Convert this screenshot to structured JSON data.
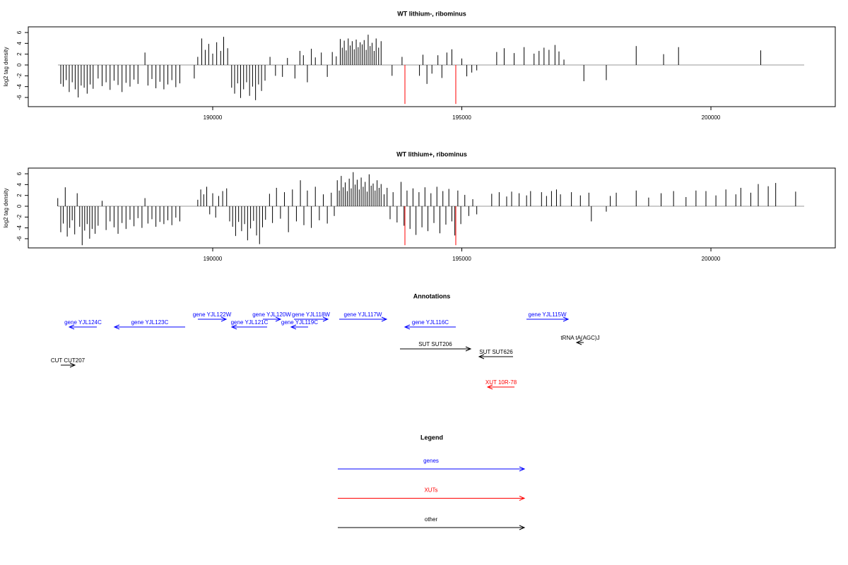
{
  "chart_data": [
    {
      "type": "bar",
      "title": "WT lithium-, ribominus",
      "y_label": "log2 tag density",
      "xlim": [
        186298,
        202496
      ],
      "ylim": [
        -7.7,
        7.05
      ],
      "xticks": [
        190000,
        195000,
        200000
      ],
      "yticks": [
        6,
        4,
        2,
        0,
        -2,
        -4,
        -6
      ],
      "color": "#000000",
      "x": [
        186950,
        187000,
        187060,
        187120,
        187180,
        187240,
        187300,
        187360,
        187420,
        187480,
        187540,
        187600,
        187700,
        187780,
        187860,
        187940,
        188020,
        188100,
        188180,
        188260,
        188340,
        188420,
        188500,
        188640,
        188700,
        188780,
        188860,
        188940,
        189020,
        189100,
        189180,
        189260,
        189340,
        189630,
        189700,
        189780,
        189850,
        189920,
        190000,
        190080,
        190160,
        190220,
        190300,
        190380,
        190440,
        190500,
        190560,
        190620,
        190680,
        190740,
        190800,
        190860,
        190920,
        190980,
        191050,
        191150,
        191260,
        191400,
        191500,
        191650,
        191750,
        191820,
        191900,
        191980,
        192060,
        192180,
        192300,
        192400,
        192480,
        192560,
        192600,
        192640,
        192680,
        192720,
        192760,
        192800,
        192840,
        192880,
        192920,
        192960,
        193000,
        193040,
        193080,
        193120,
        193160,
        193200,
        193240,
        193280,
        193330,
        193380,
        193600,
        193800,
        194150,
        194220,
        194300,
        194400,
        194520,
        194600,
        194700,
        194800,
        195000,
        195100,
        195200,
        195300,
        195700,
        195850,
        196050,
        196250,
        196450,
        196550,
        196650,
        196750,
        196870,
        196950,
        197050,
        197450,
        197900,
        198500,
        199050,
        199350,
        201000
      ],
      "values": [
        -3.5,
        -4,
        -2.8,
        -5,
        -3.2,
        -4.5,
        -6,
        -3.8,
        -4.2,
        -5.3,
        -3.6,
        -4.4,
        -2.5,
        -3.9,
        -3.2,
        -4.6,
        -2.9,
        -3.7,
        -5,
        -3.3,
        -4,
        -2.7,
        -3.5,
        2.3,
        -3.8,
        -2.6,
        -4.3,
        -3.1,
        -4.5,
        -3.6,
        -2.8,
        -4.1,
        -3.4,
        -2.5,
        1.5,
        4.9,
        2.8,
        3.9,
        2.1,
        4.2,
        2.6,
        5.2,
        3.1,
        -4.2,
        -5.3,
        -3.4,
        -6.1,
        -4.5,
        -3.2,
        -5.7,
        -4,
        -6.5,
        -3.6,
        -4.8,
        -2.9,
        1.5,
        -2,
        -2.2,
        1.3,
        -2.5,
        2.6,
        1.8,
        -3.2,
        3,
        1.4,
        2.3,
        -2.2,
        2.4,
        1.6,
        4.8,
        3.2,
        4.5,
        2.7,
        4.9,
        3.6,
        4.4,
        2.9,
        4.7,
        3.3,
        4.2,
        3.8,
        4.6,
        2.8,
        5.6,
        3.5,
        4.1,
        2.6,
        4.9,
        3.2,
        4.4,
        -2,
        1.5,
        -2,
        1.9,
        -3.5,
        -1.6,
        1.8,
        -2.4,
        2.3,
        2.9,
        1.2,
        -2.1,
        -1.4,
        -1,
        2.4,
        3.1,
        2.2,
        3.3,
        2.1,
        2.6,
        3.2,
        2.8,
        3.7,
        2.5,
        1,
        -3,
        -2.8,
        3.5,
        2,
        3.3,
        2.7
      ],
      "markers": {
        "color": "#ff0000",
        "x": [
          193858,
          194879
        ],
        "values": [
          -7.2,
          -7.2
        ]
      }
    },
    {
      "type": "bar",
      "title": "WT lithium+, ribominus",
      "y_label": "log2 tag density",
      "xlim": [
        186298,
        202496
      ],
      "ylim": [
        -7.7,
        7.05
      ],
      "xticks": [
        190000,
        195000,
        200000
      ],
      "yticks": [
        6,
        4,
        2,
        0,
        -2,
        -4,
        -6
      ],
      "color": "#000000",
      "x": [
        186890,
        186950,
        187000,
        187040,
        187080,
        187130,
        187180,
        187230,
        187280,
        187330,
        187380,
        187430,
        187480,
        187530,
        187580,
        187640,
        187700,
        187780,
        187860,
        187940,
        188020,
        188100,
        188180,
        188260,
        188340,
        188420,
        188500,
        188580,
        188640,
        188700,
        188780,
        188860,
        188940,
        189020,
        189100,
        189180,
        189260,
        189340,
        189700,
        189760,
        189820,
        189880,
        189940,
        190000,
        190060,
        190120,
        190200,
        190280,
        190340,
        190400,
        190460,
        190520,
        190580,
        190640,
        190700,
        190760,
        190820,
        190880,
        190940,
        191000,
        191060,
        191140,
        191200,
        191280,
        191360,
        191440,
        191520,
        191600,
        191680,
        191760,
        191830,
        191900,
        191980,
        192060,
        192140,
        192220,
        192300,
        192380,
        192440,
        192500,
        192540,
        192580,
        192620,
        192660,
        192700,
        192740,
        192780,
        192820,
        192860,
        192900,
        192940,
        192980,
        193020,
        193060,
        193100,
        193140,
        193180,
        193220,
        193260,
        193300,
        193340,
        193380,
        193440,
        193500,
        193560,
        193620,
        193700,
        193780,
        193840,
        193900,
        193960,
        194020,
        194080,
        194140,
        194200,
        194260,
        194320,
        194380,
        194440,
        194500,
        194560,
        194620,
        194680,
        194740,
        194800,
        194860,
        194920,
        194980,
        195060,
        195140,
        195220,
        195300,
        195600,
        195750,
        195900,
        196000,
        196150,
        196300,
        196380,
        196600,
        196700,
        196800,
        196900,
        196980,
        197200,
        197380,
        197550,
        197600,
        197900,
        197980,
        198100,
        198500,
        198750,
        199000,
        199250,
        199500,
        199700,
        199900,
        200100,
        200300,
        200500,
        200600,
        200800,
        200950,
        201150,
        201300,
        201700
      ],
      "values": [
        1.5,
        -4.8,
        -3.2,
        3.5,
        -5.6,
        -4,
        -2.6,
        -5.2,
        2.4,
        -3.8,
        -7.2,
        -4.5,
        -3.3,
        -6,
        -4.2,
        -5.1,
        -3.6,
        1,
        -4.4,
        -2.8,
        -3.9,
        -5.1,
        -3.1,
        -4.2,
        -2.5,
        -3.7,
        -2.2,
        -4,
        1.5,
        -3.2,
        -2.4,
        -3.8,
        -2.9,
        -3.3,
        -2.6,
        -3.5,
        -2.1,
        -2.8,
        1.2,
        3.1,
        2.2,
        3.6,
        -1.5,
        2.4,
        -2.1,
        1.9,
        2.8,
        3.3,
        -2.8,
        -3.8,
        -5.5,
        -2.9,
        -4.6,
        -3.3,
        -6.3,
        -4.1,
        -2.7,
        -5.4,
        -7,
        -3.9,
        -2.5,
        2.3,
        -3.1,
        3.4,
        -2.3,
        2.6,
        -4.8,
        3.1,
        -2.8,
        4.8,
        -3.5,
        2.9,
        -4,
        3.6,
        -2.6,
        2.2,
        -3.2,
        2.5,
        -1.8,
        4.8,
        2.9,
        5.6,
        3.5,
        4.4,
        2.8,
        5.1,
        3.3,
        6.3,
        4,
        4.9,
        3.1,
        5.3,
        3.6,
        4.5,
        2.7,
        5.9,
        3.8,
        4.2,
        2.9,
        4.8,
        3.4,
        4.1,
        2.2,
        3.4,
        -2.4,
        2.6,
        -3,
        4.5,
        -3.6,
        2.9,
        -4.2,
        3.3,
        -5.3,
        2.6,
        -3.9,
        3.5,
        -4.6,
        2.4,
        -3.1,
        3.6,
        -5,
        2.8,
        -3.4,
        3.2,
        -2.8,
        -5.4,
        2.9,
        -3.3,
        2.1,
        -1.8,
        1.3,
        -1.5,
        2.3,
        2.6,
        1.8,
        2.7,
        2.4,
        2,
        2.8,
        2.6,
        1.9,
        2.8,
        3.1,
        2.2,
        2.6,
        2,
        2.5,
        -2.8,
        -1,
        1.9,
        2.5,
        2.9,
        1.6,
        2.4,
        2.8,
        1.7,
        2.9,
        2.8,
        2,
        3.1,
        2.2,
        3.4,
        2.5,
        4.1,
        3.7,
        4.3,
        2.7
      ],
      "markers": {
        "color": "#ff0000",
        "x": [
          193858,
          194879
        ],
        "values": [
          -7.2,
          -7.2
        ]
      }
    }
  ],
  "annotations": {
    "title": "Annotations",
    "features": [
      {
        "label": "gene YJL124C",
        "color": "#0000ff",
        "start": 187121,
        "end": 187674,
        "strand": "-"
      },
      {
        "label": "gene YJL123C",
        "color": "#0000ff",
        "start": 188028,
        "end": 189447,
        "strand": "-"
      },
      {
        "label": "gene YJL122W",
        "color": "#0000ff",
        "start": 189702,
        "end": 190270,
        "strand": "+"
      },
      {
        "label": "gene YJL121C",
        "color": "#0000ff",
        "start": 190383,
        "end": 191092,
        "strand": "-"
      },
      {
        "label": "gene YJL120W",
        "color": "#0000ff",
        "start": 191007,
        "end": 191362,
        "strand": "+"
      },
      {
        "label": "gene YJL119C",
        "color": "#0000ff",
        "start": 191574,
        "end": 191915,
        "strand": "-"
      },
      {
        "label": "gene YJL118W",
        "color": "#0000ff",
        "start": 191631,
        "end": 192312,
        "strand": "+"
      },
      {
        "label": "gene YJL117W",
        "color": "#0000ff",
        "start": 192539,
        "end": 193489,
        "strand": "+"
      },
      {
        "label": "gene YJL116C",
        "color": "#0000ff",
        "start": 193858,
        "end": 194879,
        "strand": "-"
      },
      {
        "label": "gene YJL115W",
        "color": "#0000ff",
        "start": 196298,
        "end": 197135,
        "strand": "+"
      },
      {
        "label": "tRNA tA(AGC)J",
        "color": "#000000",
        "start": 197305,
        "end": 197447,
        "strand": "-"
      },
      {
        "label": "SUT SUT206",
        "color": "#000000",
        "start": 193759,
        "end": 195177,
        "strand": "+"
      },
      {
        "label": "SUT SUT626",
        "color": "#000000",
        "start": 195347,
        "end": 196028,
        "strand": "-"
      },
      {
        "label": "CUT CUT207",
        "color": "#000000",
        "start": 186950,
        "end": 187234,
        "strand": "+"
      },
      {
        "label": "XUT 10R-78",
        "color": "#ff0000",
        "start": 195518,
        "end": 196057,
        "strand": "-"
      }
    ]
  },
  "legend": {
    "title": "Legend",
    "items": [
      {
        "label": "genes",
        "color": "#0000ff"
      },
      {
        "label": "XUTs",
        "color": "#ff0000"
      },
      {
        "label": "other",
        "color": "#000000"
      }
    ]
  }
}
